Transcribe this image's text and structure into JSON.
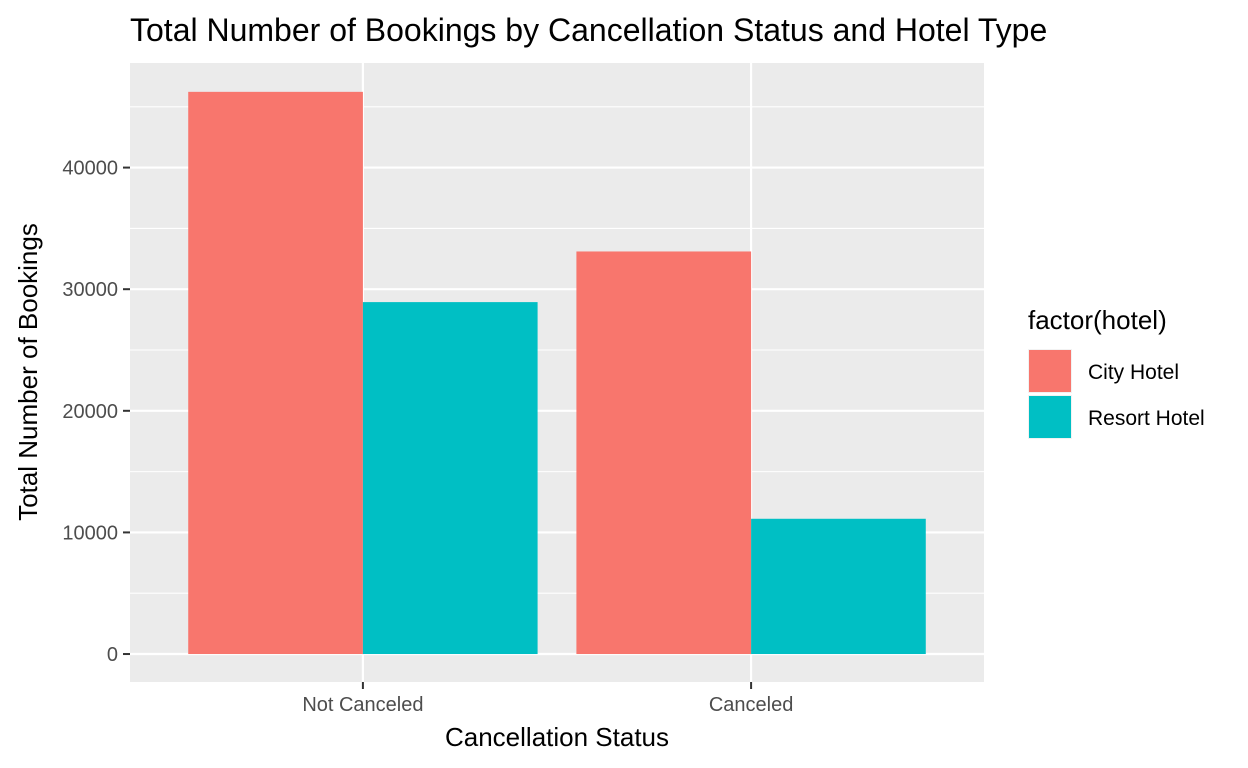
{
  "chart_data": {
    "type": "bar",
    "title": "Total Number of Bookings by Cancellation Status and Hotel Type",
    "xlabel": "Cancellation Status",
    "ylabel": "Total Number of Bookings",
    "categories": [
      "Not Canceled",
      "Canceled"
    ],
    "series": [
      {
        "name": "City Hotel",
        "values": [
          46228,
          33102
        ],
        "color": "#F8766D"
      },
      {
        "name": "Resort Hotel",
        "values": [
          28938,
          11122
        ],
        "color": "#00BFC4"
      }
    ],
    "ylim": [
      -2300,
      48600
    ],
    "yticks": [
      0,
      10000,
      20000,
      30000,
      40000
    ],
    "ytick_labels": [
      "0",
      "10000",
      "20000",
      "30000",
      "40000"
    ],
    "legend": {
      "title": "factor(hotel)",
      "position": "right"
    },
    "grid": true,
    "panel_background": "#EBEBEB",
    "grid_color": "#FFFFFF"
  }
}
